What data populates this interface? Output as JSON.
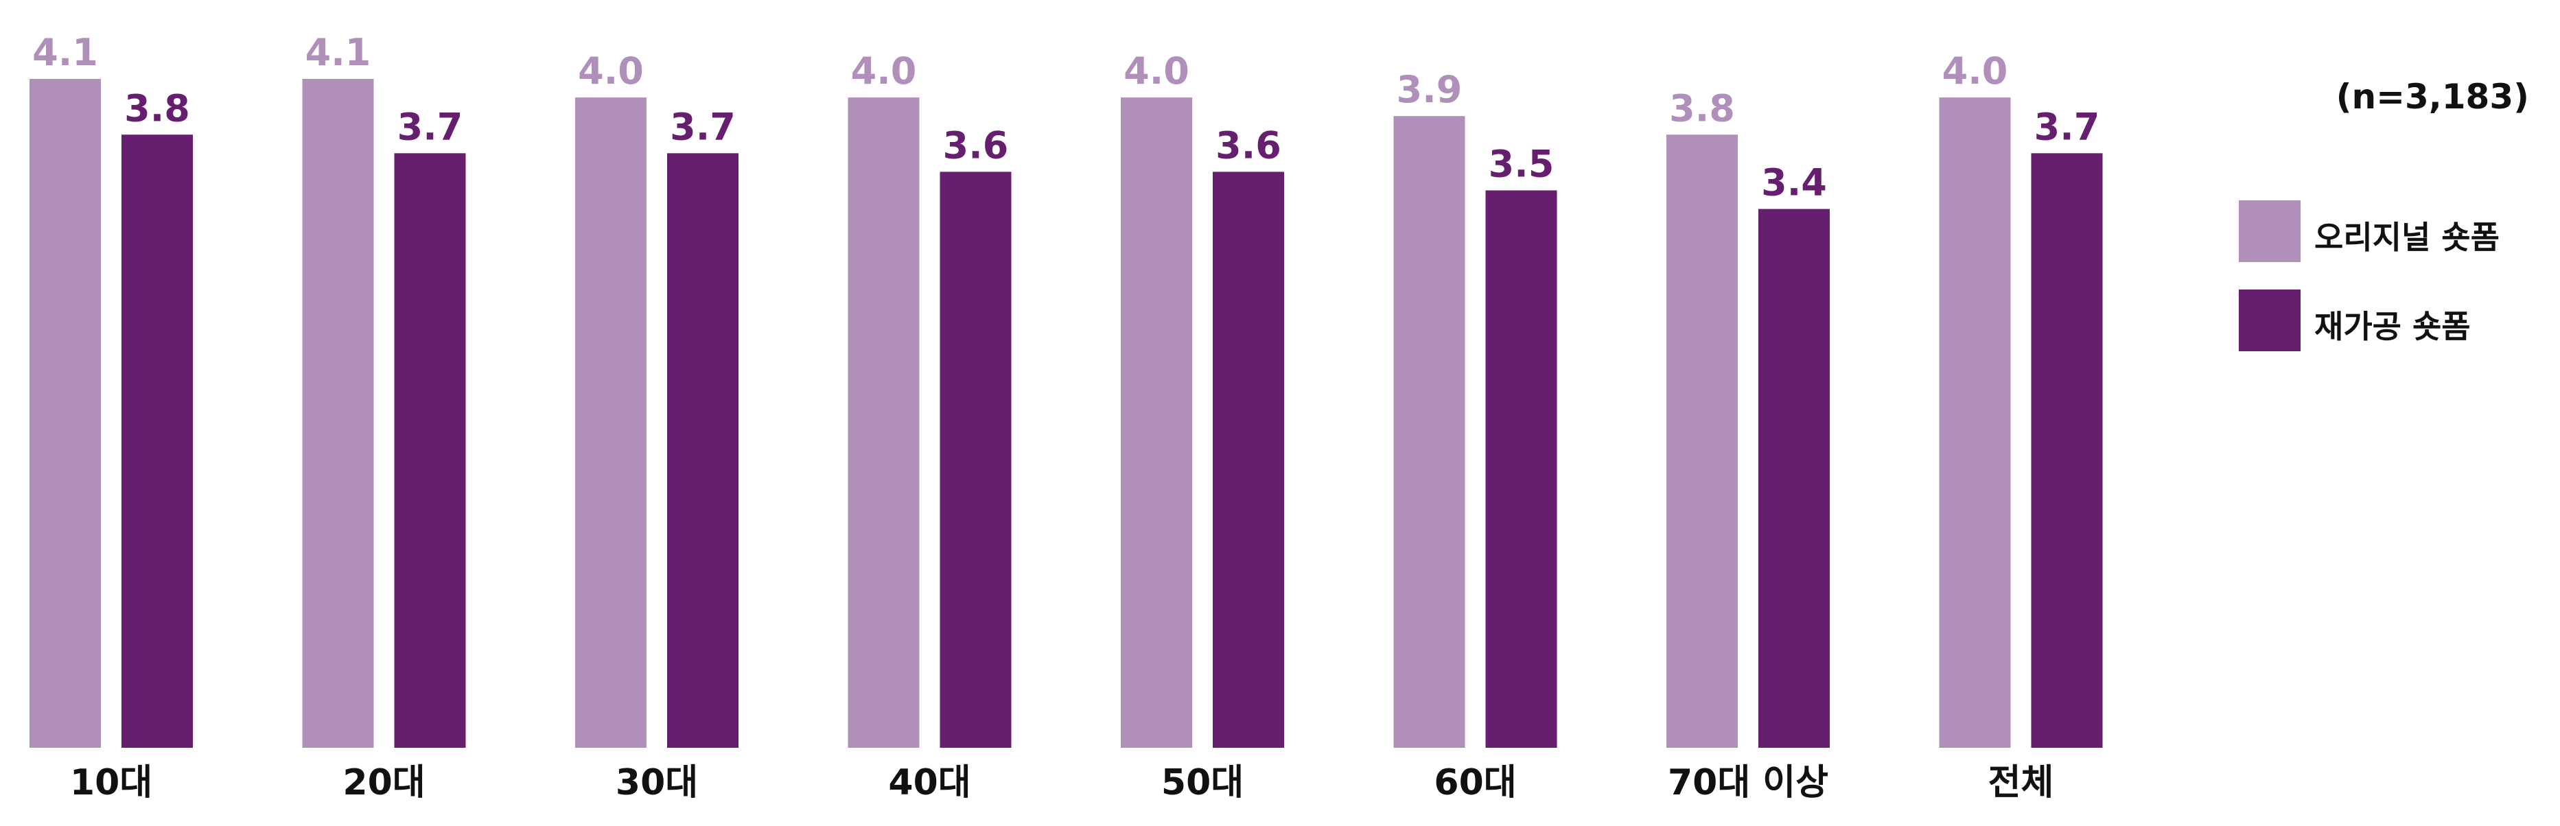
{
  "chart_data": {
    "type": "bar",
    "categories": [
      "10대",
      "20대",
      "30대",
      "40대",
      "50대",
      "60대",
      "70대 이상",
      "전체"
    ],
    "series": [
      {
        "name": "오리지널 숏폼",
        "values": [
          4.1,
          4.1,
          4.0,
          4.0,
          4.0,
          3.9,
          3.8,
          4.0
        ],
        "labels": [
          "4.1",
          "4.1",
          "4.0",
          "4.0",
          "4.0",
          "3.9",
          "3.8",
          "4.0"
        ],
        "color": "#b08fba"
      },
      {
        "name": "재가공 숏폼",
        "values": [
          3.8,
          3.7,
          3.7,
          3.6,
          3.6,
          3.5,
          3.4,
          3.7
        ],
        "labels": [
          "3.8",
          "3.7",
          "3.7",
          "3.6",
          "3.6",
          "3.5",
          "3.4",
          "3.7"
        ],
        "color": "#661e6f"
      }
    ],
    "title": "",
    "xlabel": "",
    "ylabel": "",
    "ylim": [
      0.5,
      4.1
    ],
    "grid": false,
    "legend_position": "right",
    "annotation": "(n=3,183)"
  }
}
